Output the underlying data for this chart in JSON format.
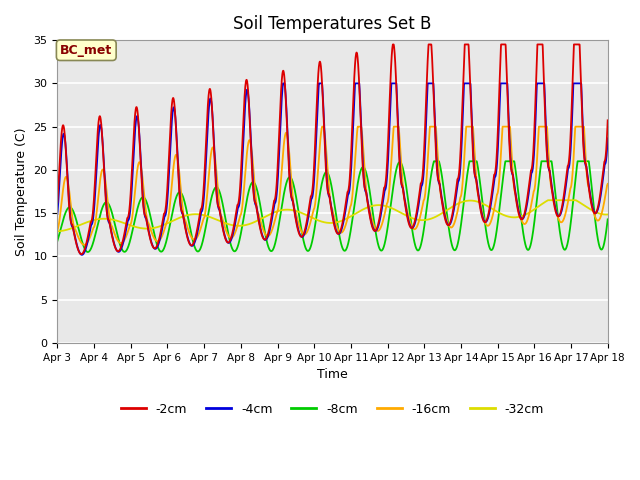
{
  "title": "Soil Temperatures Set B",
  "xlabel": "Time",
  "ylabel": "Soil Temperature (C)",
  "annotation": "BC_met",
  "ylim": [
    0,
    35
  ],
  "x_tick_labels": [
    "Apr 3",
    "Apr 4",
    "Apr 5",
    "Apr 6",
    "Apr 7",
    "Apr 8",
    "Apr 9",
    "Apr 10",
    "Apr 11",
    "Apr 12",
    "Apr 13",
    "Apr 14",
    "Apr 15",
    "Apr 16",
    "Apr 17",
    "Apr 18"
  ],
  "series_colors": [
    "#dd0000",
    "#0000dd",
    "#00cc00",
    "#ffaa00",
    "#dddd00"
  ],
  "series_labels": [
    "-2cm",
    "-4cm",
    "-8cm",
    "-16cm",
    "-32cm"
  ],
  "bg_color": "#e8e8e8",
  "title_fontsize": 12,
  "axis_fontsize": 9,
  "legend_fontsize": 9,
  "annotation_facecolor": "#ffffcc",
  "annotation_edgecolor": "#888855",
  "annotation_textcolor": "#880000"
}
